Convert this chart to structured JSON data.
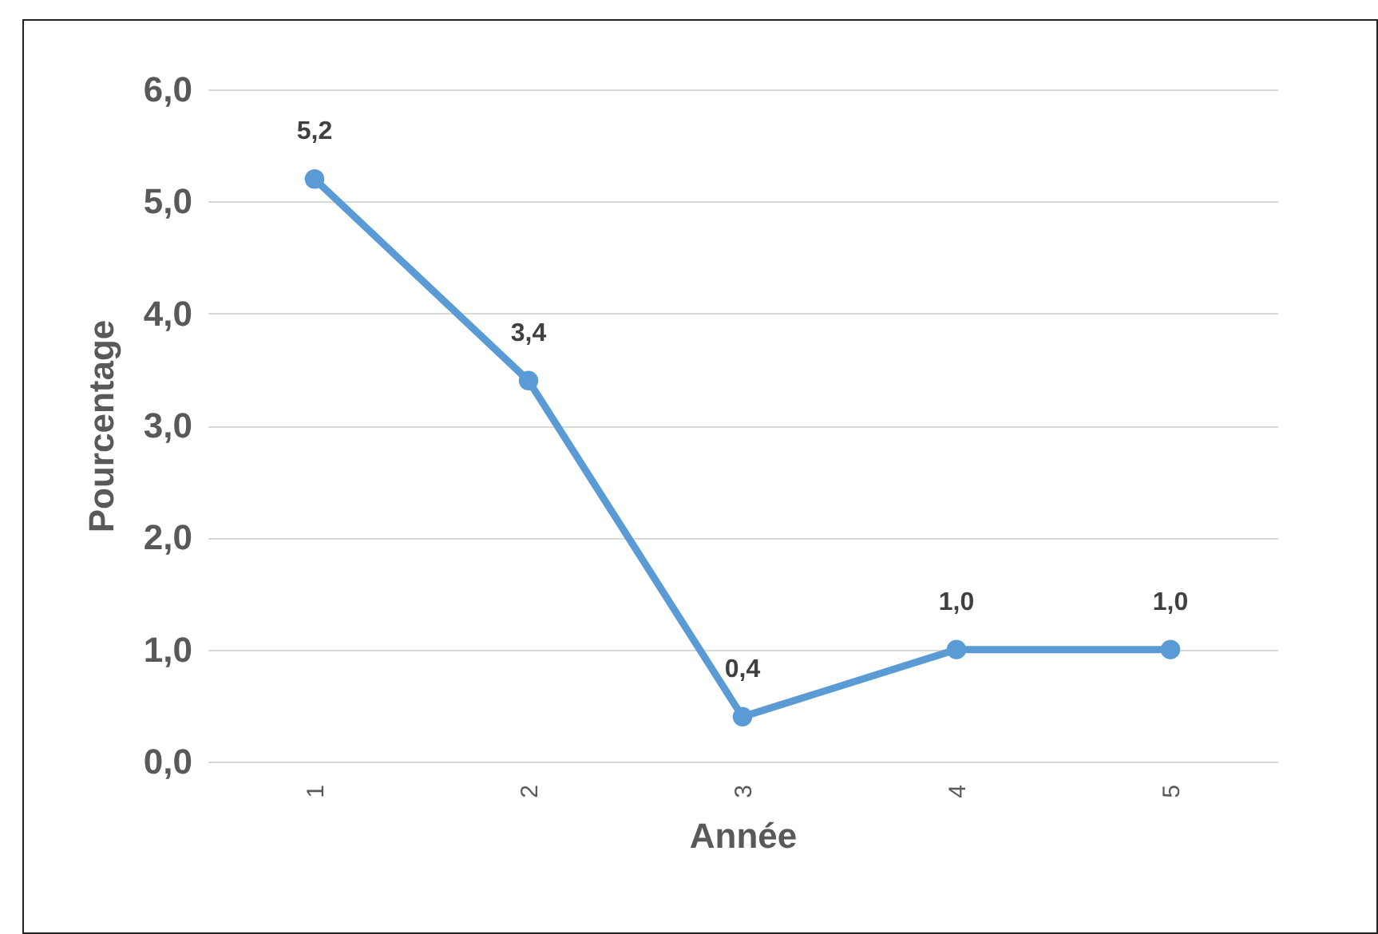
{
  "chart_data": {
    "type": "line",
    "xlabel": "Année",
    "ylabel": "Pourcentage",
    "categories": [
      "1",
      "2",
      "3",
      "4",
      "5"
    ],
    "series": [
      {
        "color": "#5b9bd5",
        "values": [
          5.2,
          3.4,
          0.4,
          1.0,
          1.0
        ],
        "value_labels": [
          "5,2",
          "3,4",
          "0,4",
          "1,0",
          "1,0"
        ]
      }
    ],
    "ylim": [
      0,
      6
    ],
    "yticks": [
      {
        "value": 0,
        "label": "0,0"
      },
      {
        "value": 1,
        "label": "1,0"
      },
      {
        "value": 2,
        "label": "2,0"
      },
      {
        "value": 3,
        "label": "3,0"
      },
      {
        "value": 4,
        "label": "4,0"
      },
      {
        "value": 5,
        "label": "5,0"
      },
      {
        "value": 6,
        "label": "6,0"
      }
    ],
    "grid": "y",
    "marker": "circle",
    "line_style": "solid"
  }
}
